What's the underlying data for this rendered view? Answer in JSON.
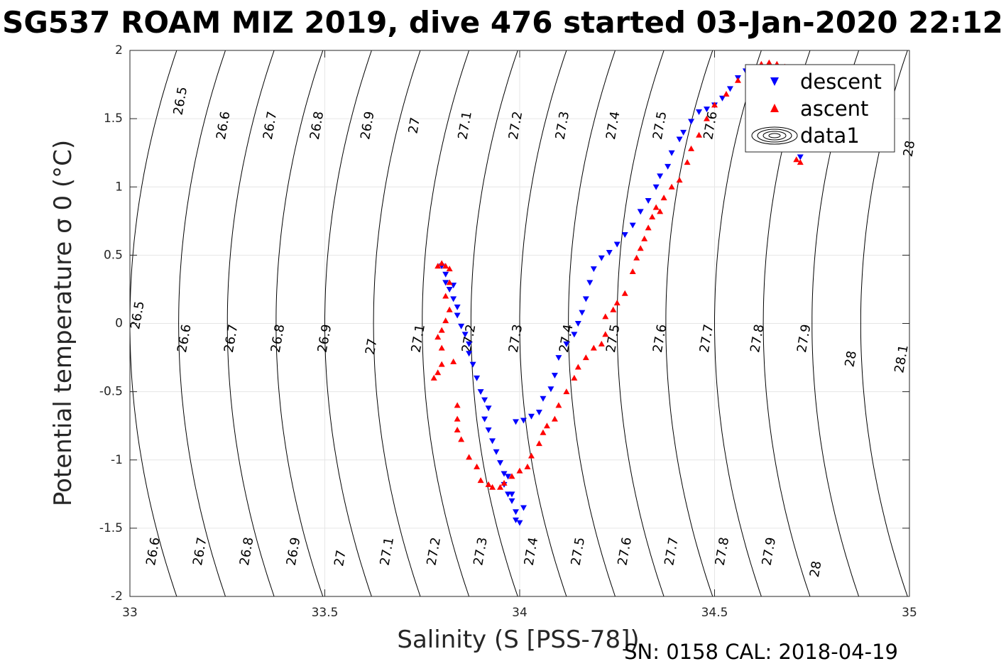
{
  "chart_data": {
    "type": "scatter",
    "title": "SG537 ROAM MIZ 2019, dive 476 started 03-Jan-2020 22:12",
    "xlabel": "Salinity (S [PSS-78])",
    "ylabel": "Potential temperature σ 0 (°C)",
    "xlim": [
      33,
      35
    ],
    "ylim": [
      -2,
      2
    ],
    "xticks": [
      33,
      33.5,
      34,
      34.5,
      35
    ],
    "xtick_labels": [
      "33",
      "33.5",
      "34",
      "34.5",
      "35"
    ],
    "yticks": [
      2,
      1.5,
      1,
      0.5,
      0,
      -0.5,
      -1,
      -1.5,
      -2
    ],
    "ytick_labels": [
      "2",
      "1.5",
      "1",
      "0.5",
      "0",
      "-0.5",
      "-1",
      "-1.5",
      "-2"
    ],
    "grid": true,
    "legend_position": "top-right",
    "legend": [
      "descent",
      "ascent",
      "data1"
    ],
    "footer": "SN: 0158  CAL: 2018-04-19",
    "density_contours": {
      "sigma_levels": [
        26.5,
        26.6,
        26.7,
        26.8,
        26.9,
        27.0,
        27.1,
        27.2,
        27.3,
        27.4,
        27.5,
        27.6,
        27.7,
        27.8,
        27.9,
        28.0,
        28.1
      ],
      "labels": [
        {
          "text": "26.5",
          "s": 33.13,
          "t": 1.63
        },
        {
          "text": "26.6",
          "s": 33.24,
          "t": 1.45
        },
        {
          "text": "26.7",
          "s": 33.36,
          "t": 1.45
        },
        {
          "text": "26.8",
          "s": 33.48,
          "t": 1.45
        },
        {
          "text": "26.9",
          "s": 33.61,
          "t": 1.45
        },
        {
          "text": "27",
          "s": 33.73,
          "t": 1.45
        },
        {
          "text": "27.1",
          "s": 33.86,
          "t": 1.45
        },
        {
          "text": "27.2",
          "s": 33.99,
          "t": 1.45
        },
        {
          "text": "27.3",
          "s": 34.11,
          "t": 1.45
        },
        {
          "text": "27.4",
          "s": 34.24,
          "t": 1.45
        },
        {
          "text": "27.5",
          "s": 34.36,
          "t": 1.45
        },
        {
          "text": "27.6",
          "s": 34.49,
          "t": 1.45
        },
        {
          "text": "28",
          "s": 35.0,
          "t": 1.28
        },
        {
          "text": "26.5",
          "s": 33.02,
          "t": 0.06
        },
        {
          "text": "26.6",
          "s": 33.14,
          "t": -0.11
        },
        {
          "text": "26.7",
          "s": 33.26,
          "t": -0.11
        },
        {
          "text": "26.8",
          "s": 33.38,
          "t": -0.11
        },
        {
          "text": "26.9",
          "s": 33.5,
          "t": -0.11
        },
        {
          "text": "27",
          "s": 33.62,
          "t": -0.17
        },
        {
          "text": "27.1",
          "s": 33.74,
          "t": -0.11
        },
        {
          "text": "27.2",
          "s": 33.87,
          "t": -0.11
        },
        {
          "text": "27.3",
          "s": 33.99,
          "t": -0.11
        },
        {
          "text": "27.4",
          "s": 34.12,
          "t": -0.11
        },
        {
          "text": "27.5",
          "s": 34.24,
          "t": -0.11
        },
        {
          "text": "27.6",
          "s": 34.36,
          "t": -0.11
        },
        {
          "text": "27.7",
          "s": 34.48,
          "t": -0.11
        },
        {
          "text": "27.8",
          "s": 34.61,
          "t": -0.11
        },
        {
          "text": "27.9",
          "s": 34.73,
          "t": -0.11
        },
        {
          "text": "28",
          "s": 34.85,
          "t": -0.26
        },
        {
          "text": "28.1",
          "s": 34.98,
          "t": -0.26
        },
        {
          "text": "26.6",
          "s": 33.06,
          "t": -1.67
        },
        {
          "text": "26.7",
          "s": 33.18,
          "t": -1.67
        },
        {
          "text": "26.8",
          "s": 33.3,
          "t": -1.67
        },
        {
          "text": "26.9",
          "s": 33.42,
          "t": -1.67
        },
        {
          "text": "27",
          "s": 33.54,
          "t": -1.72
        },
        {
          "text": "27.1",
          "s": 33.66,
          "t": -1.67
        },
        {
          "text": "27.2",
          "s": 33.78,
          "t": -1.67
        },
        {
          "text": "27.3",
          "s": 33.9,
          "t": -1.67
        },
        {
          "text": "27.4",
          "s": 34.03,
          "t": -1.67
        },
        {
          "text": "27.5",
          "s": 34.15,
          "t": -1.67
        },
        {
          "text": "27.6",
          "s": 34.27,
          "t": -1.67
        },
        {
          "text": "27.7",
          "s": 34.39,
          "t": -1.67
        },
        {
          "text": "27.8",
          "s": 34.52,
          "t": -1.67
        },
        {
          "text": "27.9",
          "s": 34.64,
          "t": -1.67
        },
        {
          "text": "28",
          "s": 34.76,
          "t": -1.8
        }
      ]
    },
    "series": [
      {
        "name": "descent",
        "color": "#0000ff",
        "marker": "triangle-down",
        "points": [
          [
            33.8,
            0.42
          ],
          [
            33.81,
            0.36
          ],
          [
            33.81,
            0.3
          ],
          [
            33.82,
            0.25
          ],
          [
            33.83,
            0.28
          ],
          [
            33.83,
            0.18
          ],
          [
            33.84,
            0.12
          ],
          [
            33.84,
            0.06
          ],
          [
            33.85,
            -0.02
          ],
          [
            33.86,
            -0.08
          ],
          [
            33.87,
            -0.15
          ],
          [
            33.87,
            -0.22
          ],
          [
            33.88,
            -0.3
          ],
          [
            33.89,
            -0.4
          ],
          [
            33.9,
            -0.5
          ],
          [
            33.91,
            -0.56
          ],
          [
            33.92,
            -0.62
          ],
          [
            33.91,
            -0.7
          ],
          [
            33.92,
            -0.78
          ],
          [
            33.93,
            -0.86
          ],
          [
            33.94,
            -0.94
          ],
          [
            33.95,
            -1.02
          ],
          [
            33.96,
            -1.1
          ],
          [
            33.96,
            -1.18
          ],
          [
            33.97,
            -1.25
          ],
          [
            33.97,
            -1.12
          ],
          [
            33.98,
            -1.3
          ],
          [
            33.99,
            -1.38
          ],
          [
            33.99,
            -1.44
          ],
          [
            34.0,
            -1.46
          ],
          [
            34.01,
            -1.35
          ],
          [
            33.98,
            -1.25
          ],
          [
            33.99,
            -0.72
          ],
          [
            34.01,
            -0.71
          ],
          [
            34.03,
            -0.68
          ],
          [
            34.05,
            -0.65
          ],
          [
            34.06,
            -0.55
          ],
          [
            34.08,
            -0.48
          ],
          [
            34.09,
            -0.38
          ],
          [
            34.1,
            -0.25
          ],
          [
            34.12,
            -0.15
          ],
          [
            34.14,
            -0.08
          ],
          [
            34.15,
            0.0
          ],
          [
            34.16,
            0.08
          ],
          [
            34.17,
            0.18
          ],
          [
            34.18,
            0.3
          ],
          [
            34.19,
            0.4
          ],
          [
            34.21,
            0.48
          ],
          [
            34.23,
            0.52
          ],
          [
            34.25,
            0.58
          ],
          [
            34.27,
            0.65
          ],
          [
            34.29,
            0.72
          ],
          [
            34.31,
            0.82
          ],
          [
            34.33,
            0.9
          ],
          [
            34.35,
            1.0
          ],
          [
            34.36,
            1.08
          ],
          [
            34.38,
            1.15
          ],
          [
            34.39,
            1.25
          ],
          [
            34.41,
            1.35
          ],
          [
            34.42,
            1.4
          ],
          [
            34.44,
            1.48
          ],
          [
            34.46,
            1.55
          ],
          [
            34.48,
            1.57
          ],
          [
            34.5,
            1.6
          ],
          [
            34.52,
            1.65
          ],
          [
            34.54,
            1.72
          ],
          [
            34.56,
            1.8
          ],
          [
            34.58,
            1.85
          ],
          [
            34.6,
            1.87
          ],
          [
            34.62,
            1.88
          ],
          [
            34.64,
            1.86
          ],
          [
            34.66,
            1.8
          ],
          [
            34.68,
            1.72
          ],
          [
            34.7,
            1.55
          ],
          [
            34.71,
            1.4
          ],
          [
            34.72,
            1.3
          ],
          [
            34.72,
            1.22
          ]
        ]
      },
      {
        "name": "ascent",
        "color": "#ff0000",
        "marker": "triangle-up",
        "points": [
          [
            33.79,
            0.42
          ],
          [
            33.8,
            0.44
          ],
          [
            33.81,
            0.42
          ],
          [
            33.82,
            0.4
          ],
          [
            33.82,
            0.3
          ],
          [
            33.81,
            0.2
          ],
          [
            33.82,
            0.1
          ],
          [
            33.81,
            0.02
          ],
          [
            33.8,
            -0.05
          ],
          [
            33.79,
            -0.1
          ],
          [
            33.8,
            -0.18
          ],
          [
            33.8,
            -0.3
          ],
          [
            33.79,
            -0.36
          ],
          [
            33.78,
            -0.4
          ],
          [
            33.83,
            -0.28
          ],
          [
            33.84,
            -0.6
          ],
          [
            33.84,
            -0.7
          ],
          [
            33.84,
            -0.78
          ],
          [
            33.85,
            -0.85
          ],
          [
            33.87,
            -0.98
          ],
          [
            33.89,
            -1.05
          ],
          [
            33.9,
            -1.15
          ],
          [
            33.92,
            -1.18
          ],
          [
            33.93,
            -1.2
          ],
          [
            33.95,
            -1.2
          ],
          [
            33.96,
            -1.17
          ],
          [
            33.98,
            -1.12
          ],
          [
            34.0,
            -1.08
          ],
          [
            34.02,
            -1.05
          ],
          [
            34.03,
            -0.97
          ],
          [
            34.05,
            -0.88
          ],
          [
            34.06,
            -0.8
          ],
          [
            34.07,
            -0.75
          ],
          [
            34.09,
            -0.7
          ],
          [
            34.1,
            -0.6
          ],
          [
            34.12,
            -0.5
          ],
          [
            34.14,
            -0.4
          ],
          [
            34.15,
            -0.32
          ],
          [
            34.17,
            -0.25
          ],
          [
            34.19,
            -0.18
          ],
          [
            34.21,
            -0.15
          ],
          [
            34.22,
            -0.08
          ],
          [
            34.22,
            0.05
          ],
          [
            34.24,
            0.1
          ],
          [
            34.25,
            0.15
          ],
          [
            34.27,
            0.22
          ],
          [
            34.29,
            0.38
          ],
          [
            34.3,
            0.48
          ],
          [
            34.31,
            0.55
          ],
          [
            34.32,
            0.62
          ],
          [
            34.33,
            0.7
          ],
          [
            34.34,
            0.78
          ],
          [
            34.35,
            0.85
          ],
          [
            34.36,
            0.82
          ],
          [
            34.37,
            0.92
          ],
          [
            34.39,
            1.0
          ],
          [
            34.41,
            1.05
          ],
          [
            34.43,
            1.18
          ],
          [
            34.44,
            1.28
          ],
          [
            34.46,
            1.38
          ],
          [
            34.48,
            1.5
          ],
          [
            34.5,
            1.6
          ],
          [
            34.53,
            1.68
          ],
          [
            34.56,
            1.78
          ],
          [
            34.59,
            1.85
          ],
          [
            34.62,
            1.9
          ],
          [
            34.64,
            1.91
          ],
          [
            34.66,
            1.9
          ],
          [
            34.68,
            1.88
          ],
          [
            34.7,
            1.8
          ],
          [
            34.71,
            1.5
          ],
          [
            34.72,
            1.3
          ],
          [
            34.71,
            1.2
          ],
          [
            34.72,
            1.18
          ]
        ]
      }
    ]
  }
}
